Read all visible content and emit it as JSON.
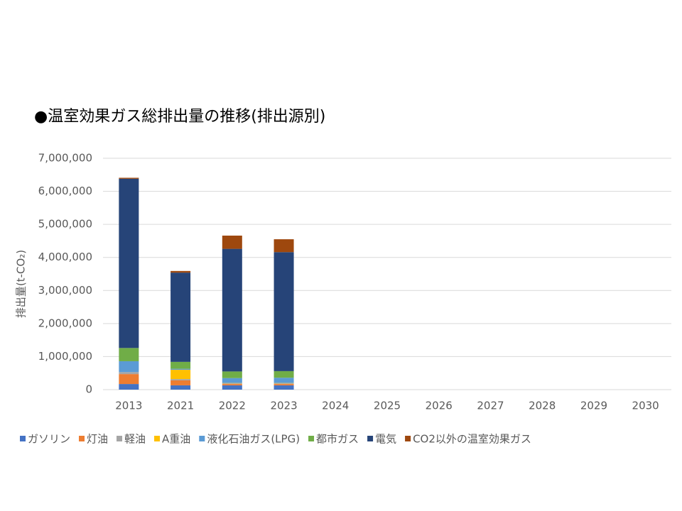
{
  "chart_data": {
    "type": "stacked_bar",
    "title": "●温室効果ガス総排出量の推移(排出源別)",
    "y_label": "排出量(t-CO₂)",
    "categories": [
      "2013",
      "2021",
      "2022",
      "2023",
      "2024",
      "2025",
      "2026",
      "2027",
      "2028",
      "2029",
      "2030"
    ],
    "series": [
      {
        "name": "ガソリン",
        "color": "#4472c4",
        "values": [
          170000,
          130000,
          130000,
          130000,
          null,
          null,
          null,
          null,
          null,
          null,
          null
        ]
      },
      {
        "name": "灯油",
        "color": "#ed7d31",
        "values": [
          300000,
          150000,
          40000,
          40000,
          null,
          null,
          null,
          null,
          null,
          null,
          null
        ]
      },
      {
        "name": "軽油",
        "color": "#a5a5a5",
        "values": [
          60000,
          40000,
          20000,
          20000,
          null,
          null,
          null,
          null,
          null,
          null,
          null
        ]
      },
      {
        "name": "A重油",
        "color": "#ffc000",
        "values": [
          0,
          280000,
          10000,
          10000,
          null,
          null,
          null,
          null,
          null,
          null,
          null
        ]
      },
      {
        "name": "液化石油ガス(LPG)",
        "color": "#5b9bd5",
        "values": [
          330000,
          30000,
          150000,
          160000,
          null,
          null,
          null,
          null,
          null,
          null,
          null
        ]
      },
      {
        "name": "都市ガス",
        "color": "#70ad47",
        "values": [
          400000,
          210000,
          200000,
          200000,
          null,
          null,
          null,
          null,
          null,
          null,
          null
        ]
      },
      {
        "name": "電気",
        "color": "#264478",
        "values": [
          5120000,
          2700000,
          3710000,
          3600000,
          null,
          null,
          null,
          null,
          null,
          null,
          null
        ]
      },
      {
        "name": "CO2以外の温室効果ガス",
        "color": "#9e480e",
        "values": [
          30000,
          50000,
          400000,
          390000,
          null,
          null,
          null,
          null,
          null,
          null,
          null
        ]
      }
    ],
    "ylim": [
      0,
      7000000
    ],
    "yticks": [
      0,
      {
        "value": 1000000,
        "label": "1,000,000"
      },
      {
        "value": 2000000,
        "label": "2,000,000"
      },
      {
        "value": 3000000,
        "label": "3,000,000"
      },
      {
        "value": 4000000,
        "label": "4,000,000"
      },
      {
        "value": 5000000,
        "label": "5,000,000"
      },
      {
        "value": 6000000,
        "label": "6,000,000"
      },
      {
        "value": 7000000,
        "label": "7,000,000"
      }
    ],
    "grid": true,
    "legend": "bottom"
  }
}
